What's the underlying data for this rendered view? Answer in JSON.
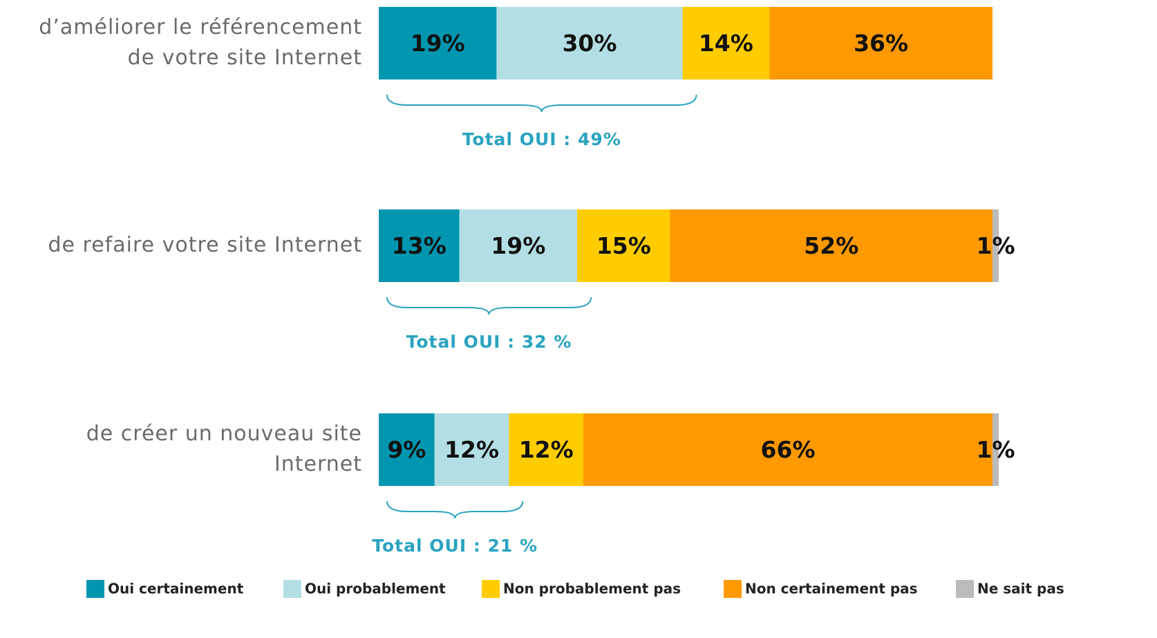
{
  "chart_data": {
    "type": "stacked-bar-horizontal",
    "categories": [
      [
        "d’améliorer le référencement",
        "de votre site Internet"
      ],
      [
        "de refaire votre site Internet"
      ],
      [
        "de créer un nouveau site",
        "Internet"
      ]
    ],
    "series": [
      {
        "name": "Oui certainement",
        "color": "#0096b0",
        "values": [
          19,
          13,
          9
        ],
        "value_labels": [
          "19%",
          "13%",
          "9%"
        ]
      },
      {
        "name": "Oui probablement",
        "color": "#b3dfe4",
        "values": [
          30,
          19,
          12
        ],
        "value_labels": [
          "30%",
          "19%",
          "12%"
        ]
      },
      {
        "name": "Non probablement pas",
        "color": "#ffcc00",
        "values": [
          14,
          15,
          12
        ],
        "value_labels": [
          "14%",
          "15%",
          "12%"
        ]
      },
      {
        "name": "Non certainement pas",
        "color": "#ff9900",
        "values": [
          36,
          52,
          66
        ],
        "value_labels": [
          "36%",
          "52%",
          "66%"
        ]
      },
      {
        "name": "Ne sait pas",
        "color": "#bbbbbb",
        "values": [
          null,
          1,
          1
        ],
        "value_labels": [
          null,
          "1%",
          "1%"
        ]
      }
    ],
    "annotations": [
      "Total OUI : 49%",
      "Total OUI : 32 %",
      "Total OUI : 21 %"
    ],
    "legend": "bottom"
  }
}
